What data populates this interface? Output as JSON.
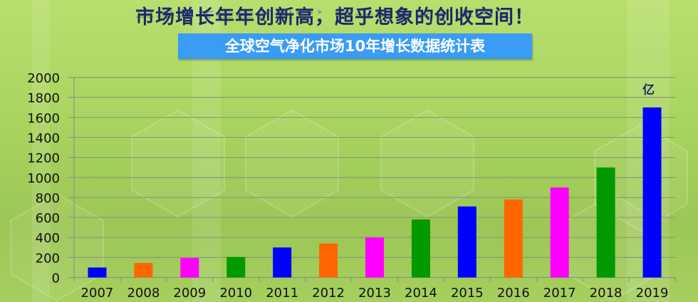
{
  "header": {
    "title": "市场增长年年创新高，超乎想象的创收空间！",
    "banner": "全球空气净化市场10年增长数据统计表"
  },
  "chart_data": {
    "type": "bar",
    "title": "全球空气净化市场10年增长数据统计表",
    "unit": "亿",
    "categories": [
      "2007",
      "2008",
      "2009",
      "2010",
      "2011",
      "2012",
      "2013",
      "2014",
      "2015",
      "2016",
      "2017",
      "2018",
      "2019"
    ],
    "values": [
      100,
      145,
      195,
      205,
      300,
      340,
      400,
      580,
      710,
      780,
      900,
      1100,
      1700
    ],
    "colors": [
      "#0000ff",
      "#ff6600",
      "#ff00ff",
      "#009900",
      "#0000ff",
      "#ff6600",
      "#ff00ff",
      "#009900",
      "#0000ff",
      "#ff6600",
      "#ff00ff",
      "#009900",
      "#0000ff"
    ],
    "ylim": [
      0,
      2000
    ],
    "yticks": [
      0,
      200,
      400,
      600,
      800,
      1000,
      1200,
      1400,
      1600,
      1800,
      2000
    ],
    "grid": true,
    "legend": "none"
  }
}
